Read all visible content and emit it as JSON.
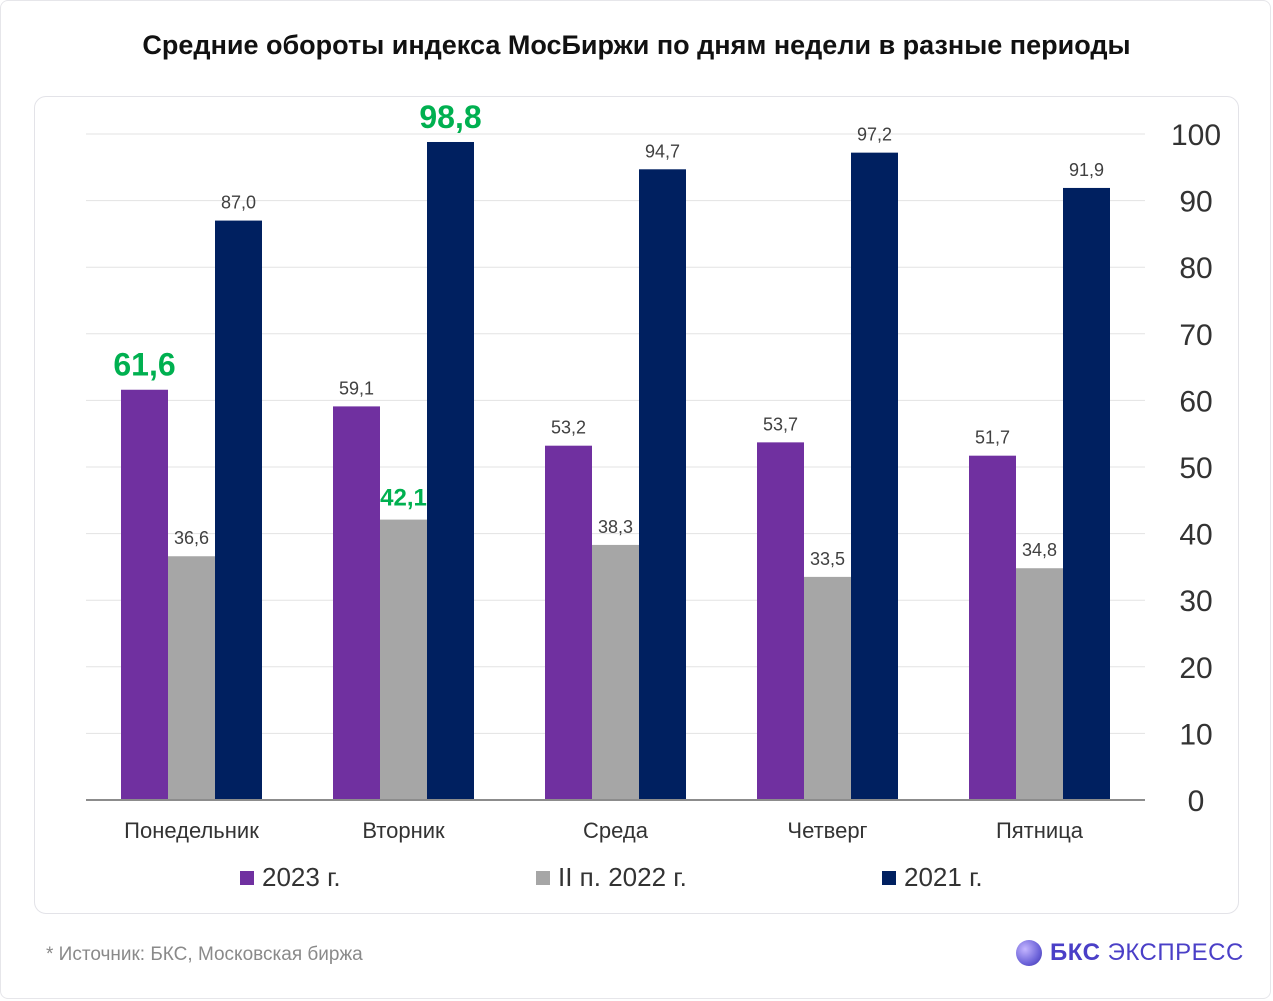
{
  "title": "Средние обороты индекса МосБиржи по дням недели в разные периоды",
  "source": "*  Источник: БКС, Московская биржа",
  "logo": {
    "bold": "БКС",
    "text": "ЭКСПРЕСС"
  },
  "colors": {
    "s2023": "#7030a0",
    "s2022": "#a6a6a6",
    "s2021": "#002060",
    "highlight": "#00b050",
    "label": "#404040",
    "grid": "#e3e3e3",
    "axis": "#333333"
  },
  "chart_data": {
    "type": "bar",
    "categories": [
      "Понедельник",
      "Вторник",
      "Среда",
      "Четверг",
      "Пятница"
    ],
    "series": [
      {
        "name": "2023 г.",
        "values": [
          61.6,
          59.1,
          53.2,
          53.7,
          51.7
        ],
        "labels": [
          "61,6",
          "59,1",
          "53,2",
          "53,7",
          "51,7"
        ],
        "highlight": [
          true,
          false,
          false,
          false,
          false
        ]
      },
      {
        "name": "II п. 2022 г.",
        "values": [
          36.6,
          42.1,
          38.3,
          33.5,
          34.8
        ],
        "labels": [
          "36,6",
          "42,1",
          "38,3",
          "33,5",
          "34,8"
        ],
        "highlight": [
          false,
          true,
          false,
          false,
          false
        ]
      },
      {
        "name": "2021 г.",
        "values": [
          87.0,
          98.8,
          94.7,
          97.2,
          91.9
        ],
        "labels": [
          "87,0",
          "98,8",
          "94,7",
          "97,2",
          "91,9"
        ],
        "highlight": [
          false,
          true,
          false,
          false,
          false
        ]
      }
    ],
    "ylim": [
      0,
      100
    ],
    "yticks": [
      0,
      10,
      20,
      30,
      40,
      50,
      60,
      70,
      80,
      90,
      100
    ],
    "y_axis_side": "right",
    "grid": true,
    "legend": "bottom"
  }
}
